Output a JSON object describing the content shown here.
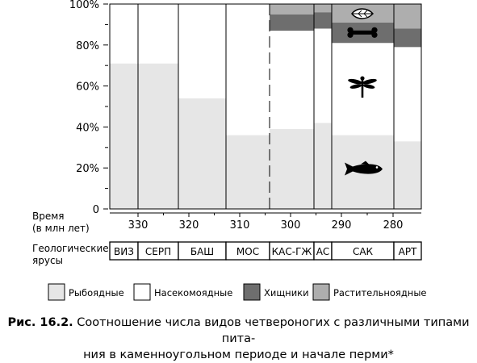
{
  "chart_data": {
    "type": "bar",
    "stacked": true,
    "ylim": [
      0,
      100
    ],
    "y_ticks": [
      {
        "v": 0,
        "label": "0"
      },
      {
        "v": 20,
        "label": "20%"
      },
      {
        "v": 40,
        "label": "40%"
      },
      {
        "v": 60,
        "label": "60%"
      },
      {
        "v": 80,
        "label": "80%"
      },
      {
        "v": 100,
        "label": "100%"
      }
    ],
    "time_title": [
      "Время",
      "(в млн лет)"
    ],
    "time_ticks": [
      "330",
      "320",
      "310",
      "300",
      "290",
      "280"
    ],
    "stage_title": [
      "Геологические",
      "ярусы"
    ],
    "categories": [
      "ВИЗ",
      "СЕРП",
      "БАШ",
      "МОС",
      "КАС-ГЖ",
      "АС",
      "САК",
      "АРТ"
    ],
    "series": [
      {
        "name": "Рыбоядные",
        "color": "#e6e6e6",
        "values": [
          71,
          71,
          54,
          36,
          39,
          42,
          36,
          33
        ]
      },
      {
        "name": "Насекомоядные",
        "color": "#ffffff",
        "values": [
          29,
          29,
          46,
          64,
          48,
          46,
          45,
          46
        ]
      },
      {
        "name": "Хищники",
        "color": "#6e6e6e",
        "values": [
          0,
          0,
          0,
          0,
          8,
          8,
          10,
          9
        ]
      },
      {
        "name": "Растительноядные",
        "color": "#aeaeae",
        "values": [
          0,
          0,
          0,
          0,
          5,
          4,
          9,
          12
        ]
      }
    ],
    "legend_position": "bottom",
    "icons": [
      "leaf-icon",
      "bone-icon",
      "dragonfly-icon",
      "fish-icon"
    ]
  },
  "caption": {
    "label": "Рис. 16.2.",
    "line1": "Соотношение числа видов четвероногих с различными типами пита-",
    "line2": "ния в каменноугольном периоде и начале перми*"
  }
}
